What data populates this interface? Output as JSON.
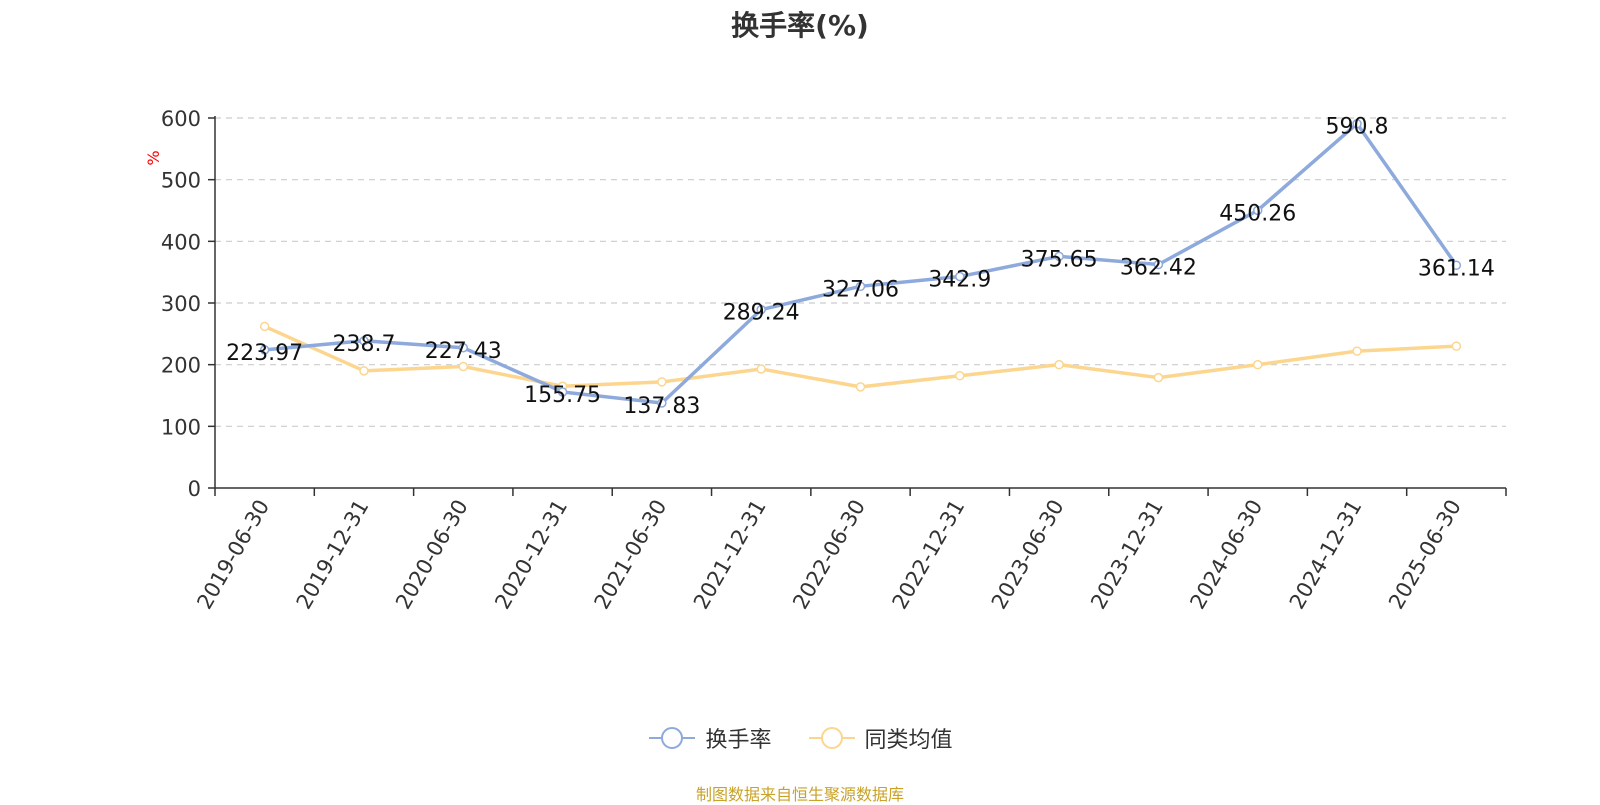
{
  "chart_data": {
    "type": "line",
    "title": "换手率(%)",
    "ylabel": "%",
    "xlabel": "",
    "ylim": [
      0,
      600
    ],
    "yticks": [
      0,
      100,
      200,
      300,
      400,
      500,
      600
    ],
    "grid": true,
    "legend_position": "bottom",
    "categories": [
      "2019-06-30",
      "2019-12-31",
      "2020-06-30",
      "2020-12-31",
      "2021-06-30",
      "2021-12-31",
      "2022-06-30",
      "2022-12-31",
      "2023-06-30",
      "2023-12-31",
      "2024-06-30",
      "2024-12-31",
      "2025-06-30"
    ],
    "series": [
      {
        "name": "换手率",
        "color": "#8eaadc",
        "values": [
          223.97,
          238.7,
          227.43,
          155.75,
          137.83,
          289.24,
          327.06,
          342.9,
          375.65,
          362.42,
          450.26,
          590.8,
          361.14
        ],
        "labels": [
          "223.97",
          "238.7",
          "227.43",
          "155.75",
          "137.83",
          "289.24",
          "327.06",
          "342.9",
          "375.65",
          "362.42",
          "450.26",
          "590.8",
          "361.14"
        ]
      },
      {
        "name": "同类均值",
        "color": "#fcd68e",
        "values": [
          262,
          190,
          197,
          165,
          172,
          193,
          164,
          182,
          200,
          179,
          200,
          222,
          230
        ]
      }
    ]
  },
  "footer": "制图数据来自恒生聚源数据库"
}
